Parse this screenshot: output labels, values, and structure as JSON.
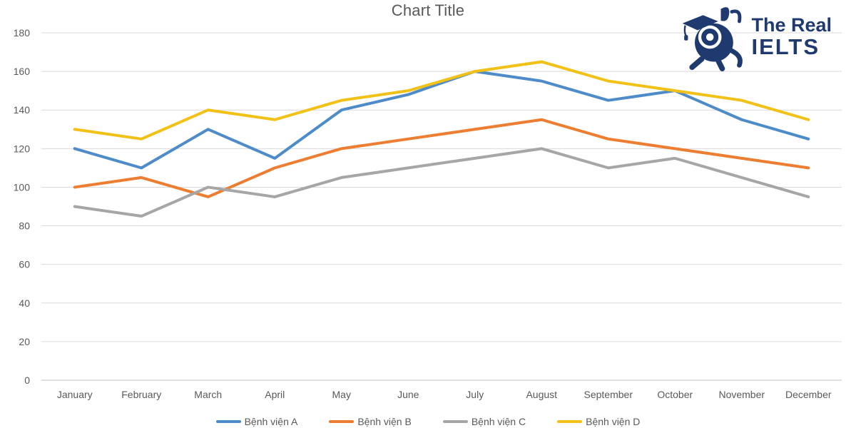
{
  "chart_data": {
    "type": "line",
    "title": "Chart Title",
    "categories": [
      "January",
      "February",
      "March",
      "April",
      "May",
      "June",
      "July",
      "August",
      "September",
      "October",
      "November",
      "December"
    ],
    "series": [
      {
        "name": "Bệnh viện A",
        "color": "#4D8BC9",
        "values": [
          120,
          110,
          130,
          115,
          140,
          148,
          160,
          155,
          145,
          150,
          135,
          125
        ]
      },
      {
        "name": "Bệnh viện B",
        "color": "#ED7D31",
        "values": [
          100,
          105,
          95,
          110,
          120,
          125,
          130,
          135,
          125,
          120,
          115,
          110
        ]
      },
      {
        "name": "Bệnh viện C",
        "color": "#A6A6A6",
        "values": [
          90,
          85,
          100,
          95,
          105,
          110,
          115,
          120,
          110,
          115,
          105,
          95
        ]
      },
      {
        "name": "Bệnh viện D",
        "color": "#F2C118",
        "values": [
          130,
          125,
          140,
          135,
          145,
          150,
          160,
          165,
          155,
          150,
          145,
          135
        ]
      }
    ],
    "ylim": [
      0,
      180
    ],
    "ytick_step": 20,
    "grid": true,
    "legend_position": "bottom",
    "xlabel": "",
    "ylabel": ""
  },
  "logo": {
    "line1": "The Real",
    "line2": "IELTS",
    "color": "#1E3A6E",
    "mascot": "graduate-rabbit-mascot-icon"
  },
  "colors": {
    "background": "#FFFFFF",
    "gridline": "#D9D9D9",
    "axis_line": "#BFBFBF",
    "text": "#595959"
  }
}
